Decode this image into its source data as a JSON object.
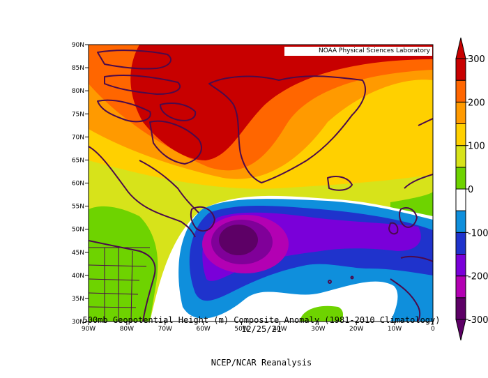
{
  "map": {
    "credit": "NOAA Physical Sciences Laboratory",
    "title": "500mb Geopotential Height (m) Composite Anomaly (1981-2010 Climatology)",
    "date": "12/25/21",
    "source": "NCEP/NCAR Reanalysis",
    "lat_ticks": [
      "90N",
      "85N",
      "80N",
      "75N",
      "70N",
      "65N",
      "60N",
      "55N",
      "50N",
      "45N",
      "40N",
      "35N",
      "30N"
    ],
    "lon_ticks": [
      "90W",
      "80W",
      "70W",
      "60W",
      "50W",
      "40W",
      "30W",
      "20W",
      "10W",
      "0"
    ],
    "colorbar_labels": [
      "300",
      "200",
      "100",
      "0",
      "-100",
      "-200",
      "-300"
    ],
    "colorbar_colors": [
      "#5d0066",
      "#b300b3",
      "#7a00d9",
      "#1f33cc",
      "#0f8fdc",
      "#ffffff",
      "#6ed300",
      "#d7e31a",
      "#ffd000",
      "#ff9a00",
      "#ff6600",
      "#c80000"
    ],
    "region": "North Atlantic, 30N-90N, 90W-0"
  }
}
